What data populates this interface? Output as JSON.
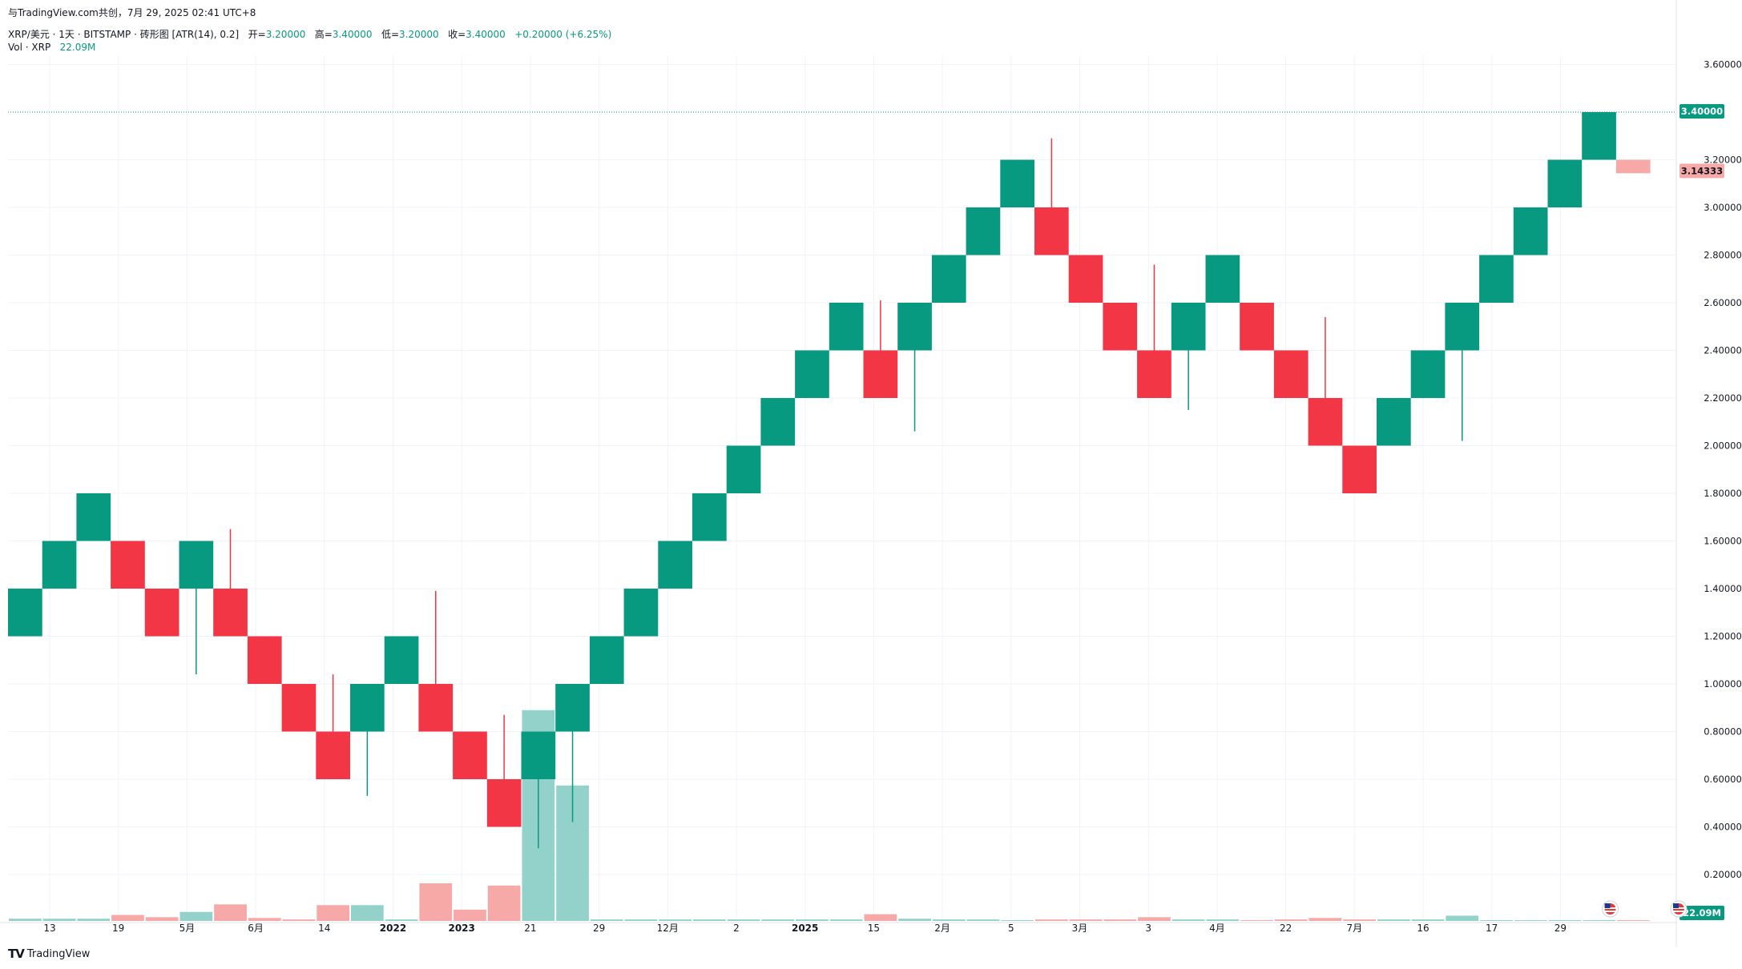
{
  "share": {
    "text": "与TradingView.com共创，7月 29, 2025 02:41 UTC+8"
  },
  "legend": {
    "symbol": "XRP/美元 · 1天 · BITSTAMP · 砖形图 [ATR(14), 0.2]",
    "open_label": "开=",
    "open": "3.20000",
    "high_label": "高=",
    "high": "3.40000",
    "low_label": "低=",
    "low": "3.20000",
    "close_label": "收=",
    "close": "3.40000",
    "change": "+0.20000 (+6.25%)"
  },
  "volume_legend": {
    "label": "Vol · XRP",
    "value": "22.09M"
  },
  "footer": {
    "brand": "TradingView"
  },
  "colors": {
    "up": "#089981",
    "down": "#f23645",
    "up_vol": "#92d2cb",
    "down_vol": "#f7a9a7",
    "ghost": "#f7a9a7",
    "grid": "#f0f3fa",
    "axis_text": "#131722"
  },
  "chart_data": {
    "type": "renko",
    "brick_size": 0.2,
    "y_axis": {
      "ticks": [
        "3.60000",
        "3.20000",
        "3.00000",
        "2.80000",
        "2.60000",
        "2.40000",
        "2.20000",
        "2.00000",
        "1.80000",
        "1.60000",
        "1.40000",
        "1.20000",
        "1.00000",
        "0.80000",
        "0.60000",
        "0.40000",
        "0.20000"
      ],
      "range": [
        0.0,
        3.8
      ]
    },
    "x_axis": {
      "tick_labels": [
        "13",
        "19",
        "5月",
        "6月",
        "14",
        "2022",
        "2023",
        "21",
        "29",
        "12月",
        "2",
        "2025",
        "15",
        "2月",
        "5",
        "3月",
        "3",
        "4月",
        "22",
        "7月",
        "16",
        "17",
        "29"
      ],
      "bold_labels": [
        "2022",
        "2023",
        "2025"
      ]
    },
    "price_labels": [
      {
        "value": "3.40000",
        "price": 3.4,
        "style": "up"
      },
      {
        "value": "3.14333",
        "price": 3.14333,
        "style": "ghost"
      },
      {
        "value": "22.09M",
        "price": null,
        "style": "volume"
      }
    ],
    "bricks": [
      {
        "open": 1.2,
        "close": 1.4
      },
      {
        "open": 1.4,
        "close": 1.6
      },
      {
        "open": 1.6,
        "close": 1.8
      },
      {
        "open": 1.6,
        "close": 1.4
      },
      {
        "open": 1.4,
        "close": 1.2
      },
      {
        "open": 1.4,
        "close": 1.6,
        "wick_low": 1.04
      },
      {
        "open": 1.4,
        "close": 1.2,
        "wick_high": 1.65
      },
      {
        "open": 1.2,
        "close": 1.0
      },
      {
        "open": 1.0,
        "close": 0.8
      },
      {
        "open": 0.8,
        "close": 0.6,
        "wick_high": 1.04
      },
      {
        "open": 0.8,
        "close": 1.0,
        "wick_low": 0.53
      },
      {
        "open": 1.0,
        "close": 1.2
      },
      {
        "open": 1.0,
        "close": 0.8,
        "wick_high": 1.39
      },
      {
        "open": 0.8,
        "close": 0.6
      },
      {
        "open": 0.6,
        "close": 0.4,
        "wick_high": 0.87
      },
      {
        "open": 0.6,
        "close": 0.8,
        "wick_low": 0.31
      },
      {
        "open": 0.8,
        "close": 1.0,
        "wick_low": 0.42
      },
      {
        "open": 1.0,
        "close": 1.2
      },
      {
        "open": 1.2,
        "close": 1.4
      },
      {
        "open": 1.4,
        "close": 1.6
      },
      {
        "open": 1.6,
        "close": 1.8
      },
      {
        "open": 1.8,
        "close": 2.0
      },
      {
        "open": 2.0,
        "close": 2.2
      },
      {
        "open": 2.2,
        "close": 2.4
      },
      {
        "open": 2.4,
        "close": 2.6
      },
      {
        "open": 2.4,
        "close": 2.2,
        "wick_high": 2.61
      },
      {
        "open": 2.4,
        "close": 2.6,
        "wick_low": 2.06
      },
      {
        "open": 2.6,
        "close": 2.8
      },
      {
        "open": 2.8,
        "close": 3.0
      },
      {
        "open": 3.0,
        "close": 3.2
      },
      {
        "open": 3.0,
        "close": 2.8,
        "wick_high": 3.29
      },
      {
        "open": 2.8,
        "close": 2.6
      },
      {
        "open": 2.6,
        "close": 2.4
      },
      {
        "open": 2.4,
        "close": 2.2,
        "wick_high": 2.76
      },
      {
        "open": 2.4,
        "close": 2.6,
        "wick_low": 2.15
      },
      {
        "open": 2.6,
        "close": 2.8
      },
      {
        "open": 2.6,
        "close": 2.4
      },
      {
        "open": 2.4,
        "close": 2.2
      },
      {
        "open": 2.2,
        "close": 2.0,
        "wick_high": 2.54
      },
      {
        "open": 2.0,
        "close": 1.8
      },
      {
        "open": 2.0,
        "close": 2.2
      },
      {
        "open": 2.2,
        "close": 2.4
      },
      {
        "open": 2.4,
        "close": 2.6,
        "wick_low": 2.02
      },
      {
        "open": 2.6,
        "close": 2.8
      },
      {
        "open": 2.8,
        "close": 3.0
      },
      {
        "open": 3.0,
        "close": 3.2
      },
      {
        "open": 3.2,
        "close": 3.4
      },
      {
        "open": 3.2,
        "close": 3.14333,
        "ghost": true
      }
    ],
    "volume": [
      3,
      3,
      3,
      8,
      5,
      12,
      22,
      4,
      2,
      21,
      21,
      2,
      50,
      15,
      47,
      280,
      180,
      2,
      2,
      2,
      2,
      2,
      2,
      2,
      2,
      9,
      3,
      2,
      2,
      1,
      2,
      2,
      2,
      5,
      2,
      2,
      1,
      2,
      4,
      2,
      2,
      2,
      7,
      1,
      1,
      1,
      1,
      1
    ],
    "volume_max_display": 300,
    "events": [
      {
        "icon": "us-flag-icon",
        "brick_index": 46
      },
      {
        "icon": "us-flag-icon",
        "brick_index": 48
      }
    ]
  }
}
